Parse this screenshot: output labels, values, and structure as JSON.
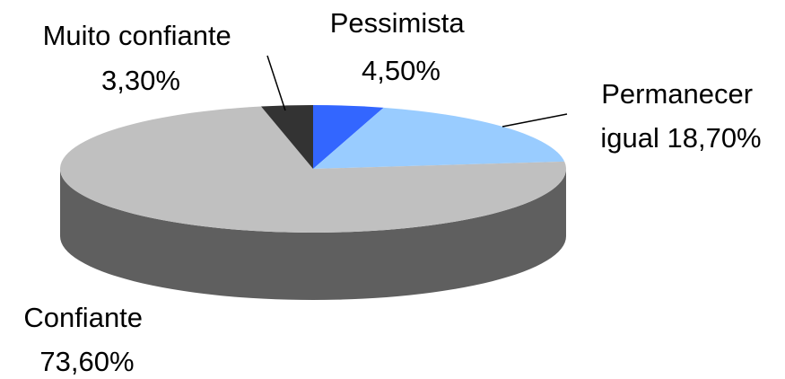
{
  "chart_data": {
    "type": "pie",
    "title": "",
    "slices": [
      {
        "label_lines": [
          "Pessimista",
          "4,50%"
        ],
        "value": 4.5,
        "color": "#3366ff"
      },
      {
        "label_lines": [
          "Permanecer",
          "igual 18,70%"
        ],
        "value": 18.7,
        "color": "#99ccff"
      },
      {
        "label_lines": [
          "Confiante",
          "73,60%"
        ],
        "value": 73.6,
        "color": "#c0c0c0"
      },
      {
        "label_lines": [
          "Muito confiante",
          "3,30%"
        ],
        "value": 3.3,
        "color": "#333333"
      }
    ],
    "side_color": "#5f5f5f",
    "start_position": "top",
    "direction": "clockwise",
    "style": "3d"
  }
}
